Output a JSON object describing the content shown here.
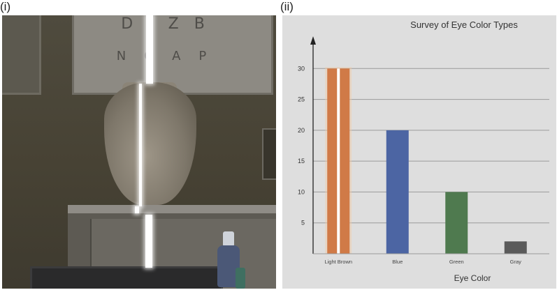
{
  "panels": {
    "left_label": "(i)",
    "right_label": "(ii)"
  },
  "photo": {
    "eye_chart_row1": "DIZB",
    "eye_chart_row2": "NGAP"
  },
  "colors": {
    "panel_bg": "#dedede",
    "grid": "#9a9a9a",
    "axis": "#222222",
    "bar_light_brown": "#d07a47",
    "bar_blue": "#4c65a3",
    "bar_green": "#4f7a4f",
    "bar_gray": "#5a5a5a",
    "highlight": "#ffffff"
  },
  "chart_data": {
    "type": "bar",
    "title": "Survey of Eye Color Types",
    "xlabel": "Eye Color",
    "ylabel": "",
    "categories": [
      "Light Brown",
      "Blue",
      "Green",
      "Gray"
    ],
    "values": [
      30,
      20,
      10,
      2
    ],
    "bar_colors": [
      "#d07a47",
      "#4c65a3",
      "#4f7a4f",
      "#5a5a5a"
    ],
    "yticks": [
      5,
      10,
      15,
      20,
      25,
      30
    ],
    "ylim": [
      0,
      35
    ],
    "grid": true,
    "highlighted_category": "Light Brown"
  }
}
